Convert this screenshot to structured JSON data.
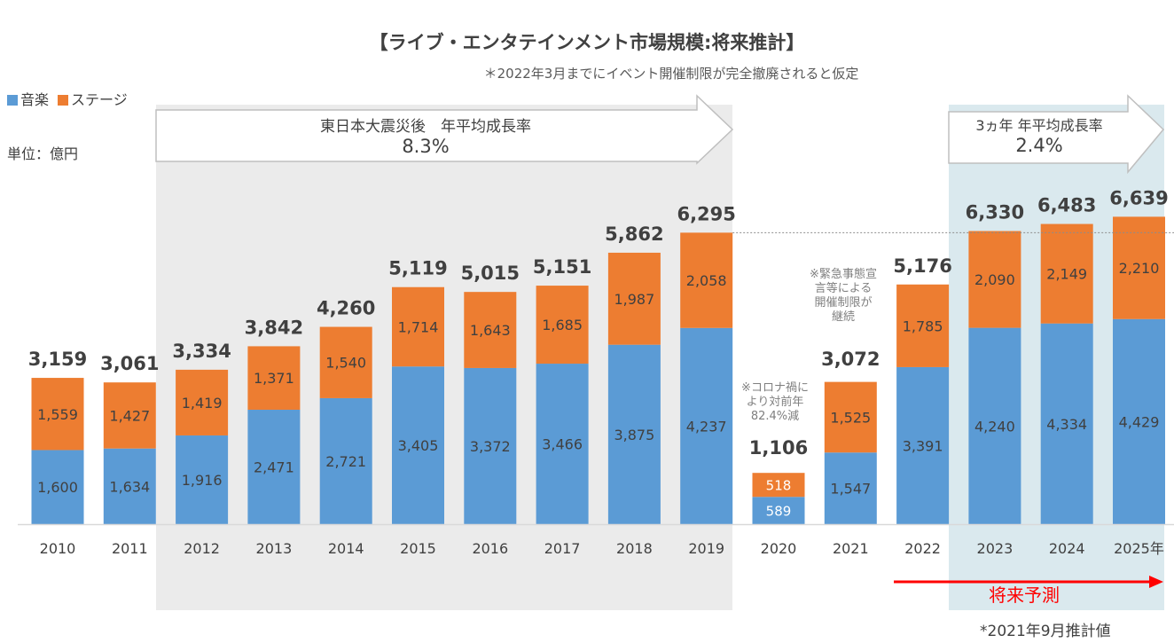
{
  "title": "【ライブ・エンタテインメント市場規模:将来推計】",
  "subtitle": "＊2022年3月までにイベント開催制限が完全撤廃されると仮定",
  "legend": {
    "music": "音楽",
    "stage": "ステージ"
  },
  "unit": "単位：億円",
  "arrow1": {
    "label": "東日本大震災後　年平均成長率",
    "value": "8.3%"
  },
  "arrow2": {
    "label": "3ヵ年 年平均成長率",
    "value": "2.4%"
  },
  "notes": {
    "covid": "※コロナ禍に\nより対前年\n82.4%減",
    "emergency": "※緊急事態宣\n言等による\n開催制限が\n継続"
  },
  "forecast_label": "将来予測",
  "footnote": "*2021年9月推計値",
  "colors": {
    "music": "#5b9bd5",
    "stage": "#ed7d31",
    "period_bg": "#ebebeb",
    "forecast_bg": "#dae9ee",
    "forecast_arrow": "#ff0000"
  },
  "chart_data": {
    "type": "bar",
    "stacked": true,
    "categories": [
      "2010",
      "2011",
      "2012",
      "2013",
      "2014",
      "2015",
      "2016",
      "2017",
      "2018",
      "2019",
      "2020",
      "2021",
      "2022",
      "2023",
      "2024",
      "2025年"
    ],
    "series": [
      {
        "name": "音楽",
        "values": [
          1600,
          1634,
          1916,
          2471,
          2721,
          3405,
          3372,
          3466,
          3875,
          4237,
          589,
          1547,
          3391,
          4240,
          4334,
          4429
        ]
      },
      {
        "name": "ステージ",
        "values": [
          1559,
          1427,
          1419,
          1371,
          1540,
          1714,
          1643,
          1685,
          1987,
          2058,
          518,
          1525,
          1785,
          2090,
          2149,
          2210
        ]
      }
    ],
    "total_labels": [
      "3,159",
      "3,061",
      "3,334",
      "3,842",
      "4,260",
      "5,119",
      "5,015",
      "5,151",
      "5,862",
      "6,295",
      "1,106",
      "3,072",
      "5,176",
      "6,330",
      "6,483",
      "6,639"
    ],
    "music_labels": [
      "1,600",
      "1,634",
      "1,916",
      "2,471",
      "2,721",
      "3,405",
      "3,372",
      "3,466",
      "3,875",
      "4,237",
      "589",
      "1,547",
      "3,391",
      "4,240",
      "4,334",
      "4,429"
    ],
    "stage_labels": [
      "1,559",
      "1,427",
      "1,419",
      "1,371",
      "1,540",
      "1,714",
      "1,643",
      "1,685",
      "1,987",
      "2,058",
      "518",
      "1,525",
      "1,785",
      "2,090",
      "2,149",
      "2,210"
    ],
    "ylim": [
      0,
      7000
    ]
  }
}
